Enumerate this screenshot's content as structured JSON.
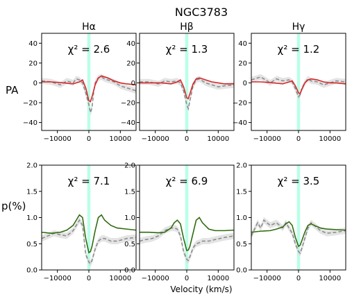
{
  "suptitle": "NGC3783",
  "xlabel": "Velocity (km/s)",
  "row_labels": [
    "PA",
    "p(%)"
  ],
  "column_titles": [
    "Hα",
    "Hβ",
    "Hγ"
  ],
  "colors": {
    "band": "#7fffd4",
    "pa_model": "#d62728",
    "p_model": "#2e6b0e",
    "observed": "#8c8c8c",
    "error_fill": "#d9d9d9"
  },
  "chart_data": [
    {
      "type": "line",
      "row": "PA",
      "column": "Hα",
      "annotation": "χ² = 2.6",
      "xlim": [
        -15000,
        15000
      ],
      "ylim": [
        -48,
        50
      ],
      "xticks": [
        -10000,
        0,
        10000
      ],
      "xtick_labels": [
        "−10000",
        "0",
        "10000"
      ],
      "yticks": [
        -40,
        -20,
        0,
        20,
        40
      ],
      "ytick_labels": [
        "−40",
        "−20",
        "0",
        "20",
        "40"
      ],
      "band": [
        -500,
        500
      ],
      "series": [
        {
          "role": "model",
          "x": [
            -15000,
            -12000,
            -8000,
            -5000,
            -3000,
            -2000,
            -1000,
            0,
            500,
            1000,
            2000,
            3000,
            4000,
            6000,
            8000,
            10000,
            12000,
            15000
          ],
          "y": [
            1,
            1,
            0,
            -1,
            1,
            3,
            -5,
            -18,
            -19,
            -14,
            -2,
            5,
            7,
            5,
            2,
            0,
            -1,
            -2
          ]
        },
        {
          "role": "observed",
          "x": [
            -15000,
            -12000,
            -9000,
            -7000,
            -5000,
            -4000,
            -3000,
            -2000,
            -1000,
            0,
            500,
            1000,
            1500,
            2000,
            3000,
            4000,
            5000,
            6000,
            8000,
            10000,
            12000,
            15000
          ],
          "y": [
            2,
            1,
            -2,
            2,
            0,
            4,
            3,
            0,
            -10,
            -22,
            -30,
            -25,
            -10,
            0,
            5,
            6,
            4,
            3,
            1,
            -3,
            -5,
            -8
          ]
        }
      ]
    },
    {
      "type": "line",
      "row": "PA",
      "column": "Hβ",
      "annotation": "χ² = 1.3",
      "xlim": [
        -15000,
        15000
      ],
      "ylim": [
        -48,
        50
      ],
      "xticks": [
        -10000,
        0,
        10000
      ],
      "xtick_labels": [
        "−10000",
        "0",
        "10000"
      ],
      "yticks": [
        -40,
        -20,
        0,
        20,
        40
      ],
      "ytick_labels": [
        "−40",
        "−20",
        "0",
        "20",
        "40"
      ],
      "band": [
        -500,
        500
      ],
      "series": [
        {
          "role": "model",
          "x": [
            -15000,
            -12000,
            -8000,
            -5000,
            -3000,
            -2000,
            -1000,
            0,
            500,
            1000,
            2000,
            3000,
            4000,
            6000,
            8000,
            10000,
            12000,
            15000
          ],
          "y": [
            0,
            0,
            0,
            -1,
            1,
            3,
            -4,
            -15,
            -16,
            -11,
            -1,
            4,
            5,
            3,
            1,
            0,
            -1,
            -1
          ]
        },
        {
          "role": "observed",
          "x": [
            -15000,
            -12000,
            -9000,
            -7000,
            -5000,
            -3000,
            -2000,
            -1000,
            0,
            500,
            1000,
            2000,
            3000,
            4000,
            6000,
            8000,
            10000,
            12000,
            15000
          ],
          "y": [
            1,
            1,
            -1,
            2,
            1,
            2,
            0,
            -8,
            -22,
            -26,
            -18,
            -3,
            3,
            4,
            0,
            -2,
            -4,
            -3,
            -2
          ]
        }
      ]
    },
    {
      "type": "line",
      "row": "PA",
      "column": "Hγ",
      "annotation": "χ² = 1.2",
      "xlim": [
        -15000,
        15000
      ],
      "ylim": [
        -48,
        50
      ],
      "xticks": [
        -10000,
        0,
        10000
      ],
      "xtick_labels": [
        "−10000",
        "0",
        "10000"
      ],
      "yticks": [
        -40,
        -20,
        0,
        20,
        40
      ],
      "ytick_labels": [
        "−40",
        "−20",
        "0",
        "20",
        "40"
      ],
      "band": [
        -500,
        500
      ],
      "series": [
        {
          "role": "model",
          "x": [
            -15000,
            -12000,
            -8000,
            -5000,
            -3000,
            -2000,
            -1000,
            0,
            500,
            1000,
            2000,
            3000,
            4000,
            6000,
            8000,
            10000,
            12000,
            15000
          ],
          "y": [
            1,
            1,
            0,
            -1,
            1,
            2,
            -3,
            -10,
            -11,
            -7,
            0,
            3,
            4,
            3,
            1,
            0,
            0,
            -1
          ]
        },
        {
          "role": "observed",
          "x": [
            -15000,
            -12000,
            -9000,
            -7000,
            -5000,
            -3000,
            -2000,
            -1000,
            0,
            500,
            1000,
            2000,
            3000,
            4000,
            6000,
            8000,
            10000,
            12000,
            15000
          ],
          "y": [
            3,
            6,
            0,
            4,
            2,
            3,
            1,
            -6,
            -14,
            -12,
            -6,
            0,
            4,
            2,
            1,
            -2,
            0,
            2,
            1
          ]
        }
      ]
    },
    {
      "type": "line",
      "row": "p(%)",
      "column": "Hα",
      "annotation": "χ² = 7.1",
      "xlim": [
        -15000,
        15000
      ],
      "ylim": [
        0,
        2.0
      ],
      "xticks": [
        -10000,
        0,
        10000
      ],
      "xtick_labels": [
        "−10000",
        "0",
        "10000"
      ],
      "yticks": [
        0,
        0.5,
        1.0,
        1.5,
        2.0
      ],
      "ytick_labels": [
        "0.0",
        "0.5",
        "1.0",
        "1.5",
        "2.0"
      ],
      "band": [
        -500,
        500
      ],
      "series": [
        {
          "role": "model",
          "x": [
            -15000,
            -12000,
            -9000,
            -7000,
            -5000,
            -4000,
            -3000,
            -2000,
            -1000,
            0,
            500,
            1000,
            2000,
            3000,
            4000,
            5000,
            7000,
            9000,
            12000,
            15000
          ],
          "y": [
            0.72,
            0.7,
            0.72,
            0.76,
            0.85,
            0.95,
            1.05,
            1.0,
            0.6,
            0.33,
            0.35,
            0.45,
            0.75,
            1.0,
            1.05,
            0.95,
            0.85,
            0.8,
            0.78,
            0.76
          ]
        },
        {
          "role": "observed",
          "x": [
            -15000,
            -13000,
            -11000,
            -9000,
            -7000,
            -5000,
            -4000,
            -3000,
            -2000,
            -1000,
            0,
            500,
            1000,
            2000,
            3000,
            4000,
            5000,
            7000,
            9000,
            12000,
            15000
          ],
          "y": [
            0.6,
            0.65,
            0.7,
            0.67,
            0.65,
            0.75,
            0.85,
            0.95,
            0.85,
            0.3,
            0.15,
            0.12,
            0.18,
            0.4,
            0.55,
            0.6,
            0.6,
            0.55,
            0.55,
            0.6,
            0.62
          ]
        }
      ]
    },
    {
      "type": "line",
      "row": "p(%)",
      "column": "Hβ",
      "annotation": "χ² = 6.9",
      "xlim": [
        -15000,
        15000
      ],
      "ylim": [
        0,
        2.0
      ],
      "xticks": [
        -10000,
        0,
        10000
      ],
      "xtick_labels": [
        "−10000",
        "0",
        "10000"
      ],
      "yticks": [
        0,
        0.5,
        1.0,
        1.5,
        2.0
      ],
      "ytick_labels": [
        "0.0",
        "0.5",
        "1.0",
        "1.5",
        "2.0"
      ],
      "band": [
        -500,
        500
      ],
      "series": [
        {
          "role": "model",
          "x": [
            -15000,
            -12000,
            -9000,
            -7000,
            -5000,
            -4000,
            -3000,
            -2000,
            -1000,
            0,
            500,
            1000,
            2000,
            3000,
            4000,
            5000,
            7000,
            9000,
            12000,
            15000
          ],
          "y": [
            0.72,
            0.72,
            0.71,
            0.72,
            0.8,
            0.9,
            0.95,
            0.88,
            0.6,
            0.37,
            0.38,
            0.45,
            0.7,
            0.95,
            1.0,
            0.9,
            0.78,
            0.75,
            0.75,
            0.76
          ]
        },
        {
          "role": "observed",
          "x": [
            -15000,
            -13000,
            -11000,
            -9000,
            -7000,
            -5000,
            -4000,
            -3000,
            -2000,
            -1000,
            0,
            500,
            1000,
            2000,
            3000,
            4000,
            5000,
            7000,
            9000,
            12000,
            15000
          ],
          "y": [
            0.55,
            0.58,
            0.6,
            0.65,
            0.75,
            0.8,
            0.8,
            0.78,
            0.65,
            0.35,
            0.2,
            0.18,
            0.25,
            0.42,
            0.5,
            0.52,
            0.55,
            0.55,
            0.58,
            0.62,
            0.65
          ]
        }
      ]
    },
    {
      "type": "line",
      "row": "p(%)",
      "column": "Hγ",
      "annotation": "χ² = 3.5",
      "xlim": [
        -15000,
        15000
      ],
      "ylim": [
        0,
        2.0
      ],
      "xticks": [
        -10000,
        0,
        10000
      ],
      "xtick_labels": [
        "−10000",
        "0",
        "10000"
      ],
      "yticks": [
        0,
        0.5,
        1.0,
        1.5,
        2.0
      ],
      "ytick_labels": [
        "0.0",
        "0.5",
        "1.0",
        "1.5",
        "2.0"
      ],
      "band": [
        -500,
        500
      ],
      "series": [
        {
          "role": "model",
          "x": [
            -15000,
            -12000,
            -9000,
            -7000,
            -5000,
            -4000,
            -3000,
            -2000,
            -1000,
            0,
            500,
            1000,
            2000,
            3000,
            4000,
            5000,
            7000,
            9000,
            12000,
            15000
          ],
          "y": [
            0.72,
            0.74,
            0.75,
            0.78,
            0.82,
            0.88,
            0.92,
            0.85,
            0.62,
            0.45,
            0.47,
            0.55,
            0.72,
            0.85,
            0.88,
            0.85,
            0.8,
            0.78,
            0.77,
            0.76
          ]
        },
        {
          "role": "observed",
          "x": [
            -15000,
            -13000,
            -12000,
            -11000,
            -9000,
            -7000,
            -5000,
            -4000,
            -3000,
            -2000,
            -1000,
            0,
            500,
            1000,
            2000,
            3000,
            4000,
            5000,
            7000,
            9000,
            12000,
            15000
          ],
          "y": [
            0.65,
            0.9,
            0.8,
            0.95,
            0.85,
            0.9,
            0.8,
            0.9,
            0.8,
            0.7,
            0.5,
            0.35,
            0.32,
            0.4,
            0.6,
            0.8,
            0.9,
            0.85,
            0.75,
            0.7,
            0.72,
            0.75
          ]
        }
      ]
    }
  ]
}
